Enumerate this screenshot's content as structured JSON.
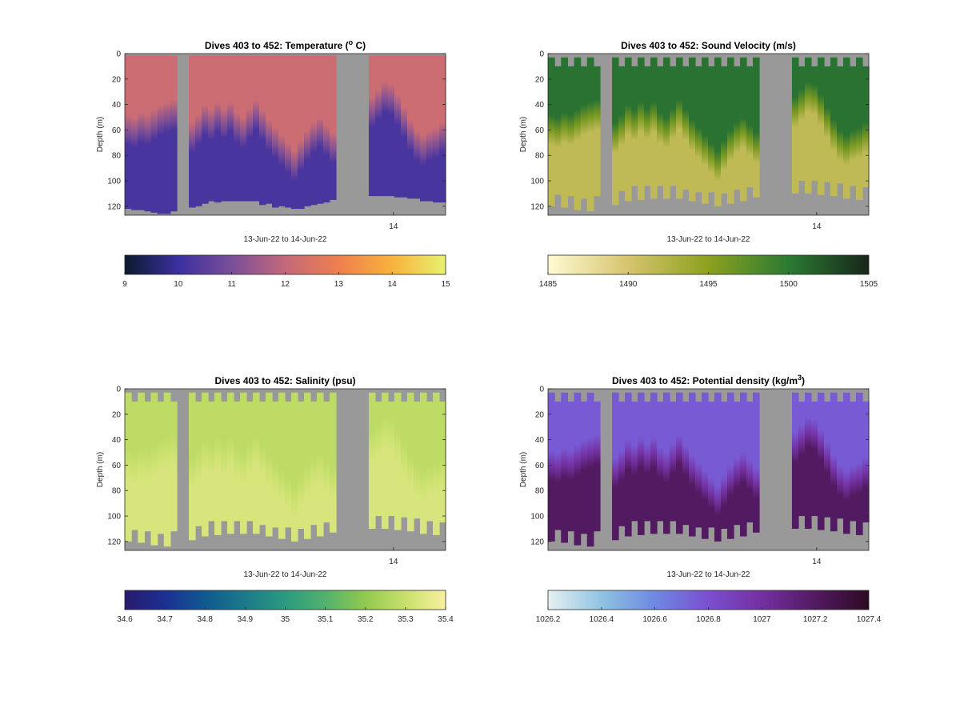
{
  "chart_data": [
    {
      "type": "heatmap",
      "title": {
        "main": "Dives 403 to 452: Temperature (",
        "sup": "o",
        "end": " C)"
      },
      "xlabel": "13-Jun-22 to 14-Jun-22",
      "ylabel": "Depth (m)",
      "ylim": [
        0,
        127
      ],
      "yticks": [
        "0",
        "20",
        "40",
        "60",
        "80",
        "100",
        "120"
      ],
      "xtick": {
        "label": "14",
        "hour": 20.1
      },
      "xlim_hours": [
        0,
        24
      ],
      "colorbar": {
        "clim": [
          9,
          15
        ],
        "ticks": [
          "9",
          "10",
          "11",
          "12",
          "13",
          "14",
          "15"
        ],
        "colormap": [
          "#0b1a2c",
          "#3b2fa0",
          "#7a4f98",
          "#c4687c",
          "#ee7f4e",
          "#f8b23c",
          "#e8f26e"
        ]
      },
      "surface_value": 12.2,
      "deep_value": 10.2,
      "zigzag": false
    },
    {
      "type": "heatmap",
      "title": {
        "main": "Dives 403 to 452: Sound Velocity (m/s)",
        "sup": "",
        "end": ""
      },
      "xlabel": "13-Jun-22 to 14-Jun-22",
      "ylabel": "Depth (m)",
      "ylim": [
        0,
        127
      ],
      "yticks": [
        "0",
        "20",
        "40",
        "60",
        "80",
        "100",
        "120"
      ],
      "xtick": {
        "label": "14",
        "hour": 20.1
      },
      "xlim_hours": [
        0,
        24
      ],
      "colorbar": {
        "clim": [
          1485,
          1505
        ],
        "ticks": [
          "1485",
          "1490",
          "1495",
          "1500",
          "1505"
        ],
        "colormap": [
          "#fffbd2",
          "#d6c46e",
          "#8ca11e",
          "#2b7a33",
          "#18261a"
        ]
      },
      "surface_value": 1500.5,
      "deep_value": 1491.5,
      "zigzag": true
    },
    {
      "type": "heatmap",
      "title": {
        "main": "Dives 403 to 452: Salinity (psu)",
        "sup": "",
        "end": ""
      },
      "xlabel": "13-Jun-22 to 14-Jun-22",
      "ylabel": "Depth (m)",
      "ylim": [
        0,
        127
      ],
      "yticks": [
        "0",
        "20",
        "40",
        "60",
        "80",
        "100",
        "120"
      ],
      "xtick": {
        "label": "14",
        "hour": 20.1
      },
      "xlim_hours": [
        0,
        24
      ],
      "colorbar": {
        "clim": [
          34.6,
          35.4
        ],
        "ticks": [
          "34.6",
          "34.7",
          "34.8",
          "34.9",
          "35",
          "35.1",
          "35.2",
          "35.3",
          "35.4"
        ],
        "colormap": [
          "#2a1a6e",
          "#1b2f92",
          "#10598f",
          "#1c7a8a",
          "#2c9a80",
          "#52b16e",
          "#92c94e",
          "#c9e06c",
          "#f8f0a2"
        ]
      },
      "surface_value": 35.28,
      "deep_value": 35.33,
      "zigzag": true
    },
    {
      "type": "heatmap",
      "title": {
        "main": "Dives 403 to 452: Potential density (kg/m",
        "sup": "3",
        "end": ")"
      },
      "xlabel": "13-Jun-22 to 14-Jun-22",
      "ylabel": "Depth (m)",
      "ylim": [
        0,
        127
      ],
      "yticks": [
        "0",
        "20",
        "40",
        "60",
        "80",
        "100",
        "120"
      ],
      "xtick": {
        "label": "14",
        "hour": 20.1
      },
      "xlim_hours": [
        0,
        24
      ],
      "colorbar": {
        "clim": [
          1026.2,
          1027.4
        ],
        "ticks": [
          "1026.2",
          "1026.4",
          "1026.6",
          "1026.8",
          "1027",
          "1027.2",
          "1027.4"
        ],
        "colormap": [
          "#e6f0f0",
          "#8fc3e2",
          "#6f88e2",
          "#7a4fd0",
          "#7430a0",
          "#521a60",
          "#2c0a22"
        ]
      },
      "surface_value": 1026.76,
      "deep_value": 1027.2,
      "zigzag": true
    }
  ],
  "profiles": {
    "segments_hours": [
      [
        0,
        3.89
      ],
      [
        4.79,
        15.8
      ],
      [
        18.25,
        24
      ]
    ],
    "mixed_layer_depth_m": [
      [
        60,
        62,
        58,
        60,
        56,
        52,
        50,
        48
      ],
      [
        66,
        60,
        52,
        56,
        50,
        55,
        50,
        58,
        62,
        55,
        48,
        56,
        64,
        70,
        76,
        82,
        88,
        80,
        72,
        66,
        62,
        68,
        74
      ],
      [
        46,
        40,
        34,
        36,
        44,
        54,
        64,
        72,
        76,
        72,
        70,
        66
      ]
    ],
    "bottom_depth_m": [
      [
        122,
        123,
        123,
        124,
        125,
        126,
        126,
        124
      ],
      [
        121,
        120,
        118,
        116,
        117,
        116,
        116,
        116,
        116,
        116,
        116,
        119,
        118,
        121,
        120,
        121,
        122,
        122,
        120,
        119,
        118,
        117,
        115
      ],
      [
        112,
        112,
        112,
        112,
        113,
        113,
        114,
        114,
        116,
        116,
        117,
        117
      ]
    ]
  },
  "colors": {
    "missing": "#999999",
    "axis": "#262626"
  }
}
